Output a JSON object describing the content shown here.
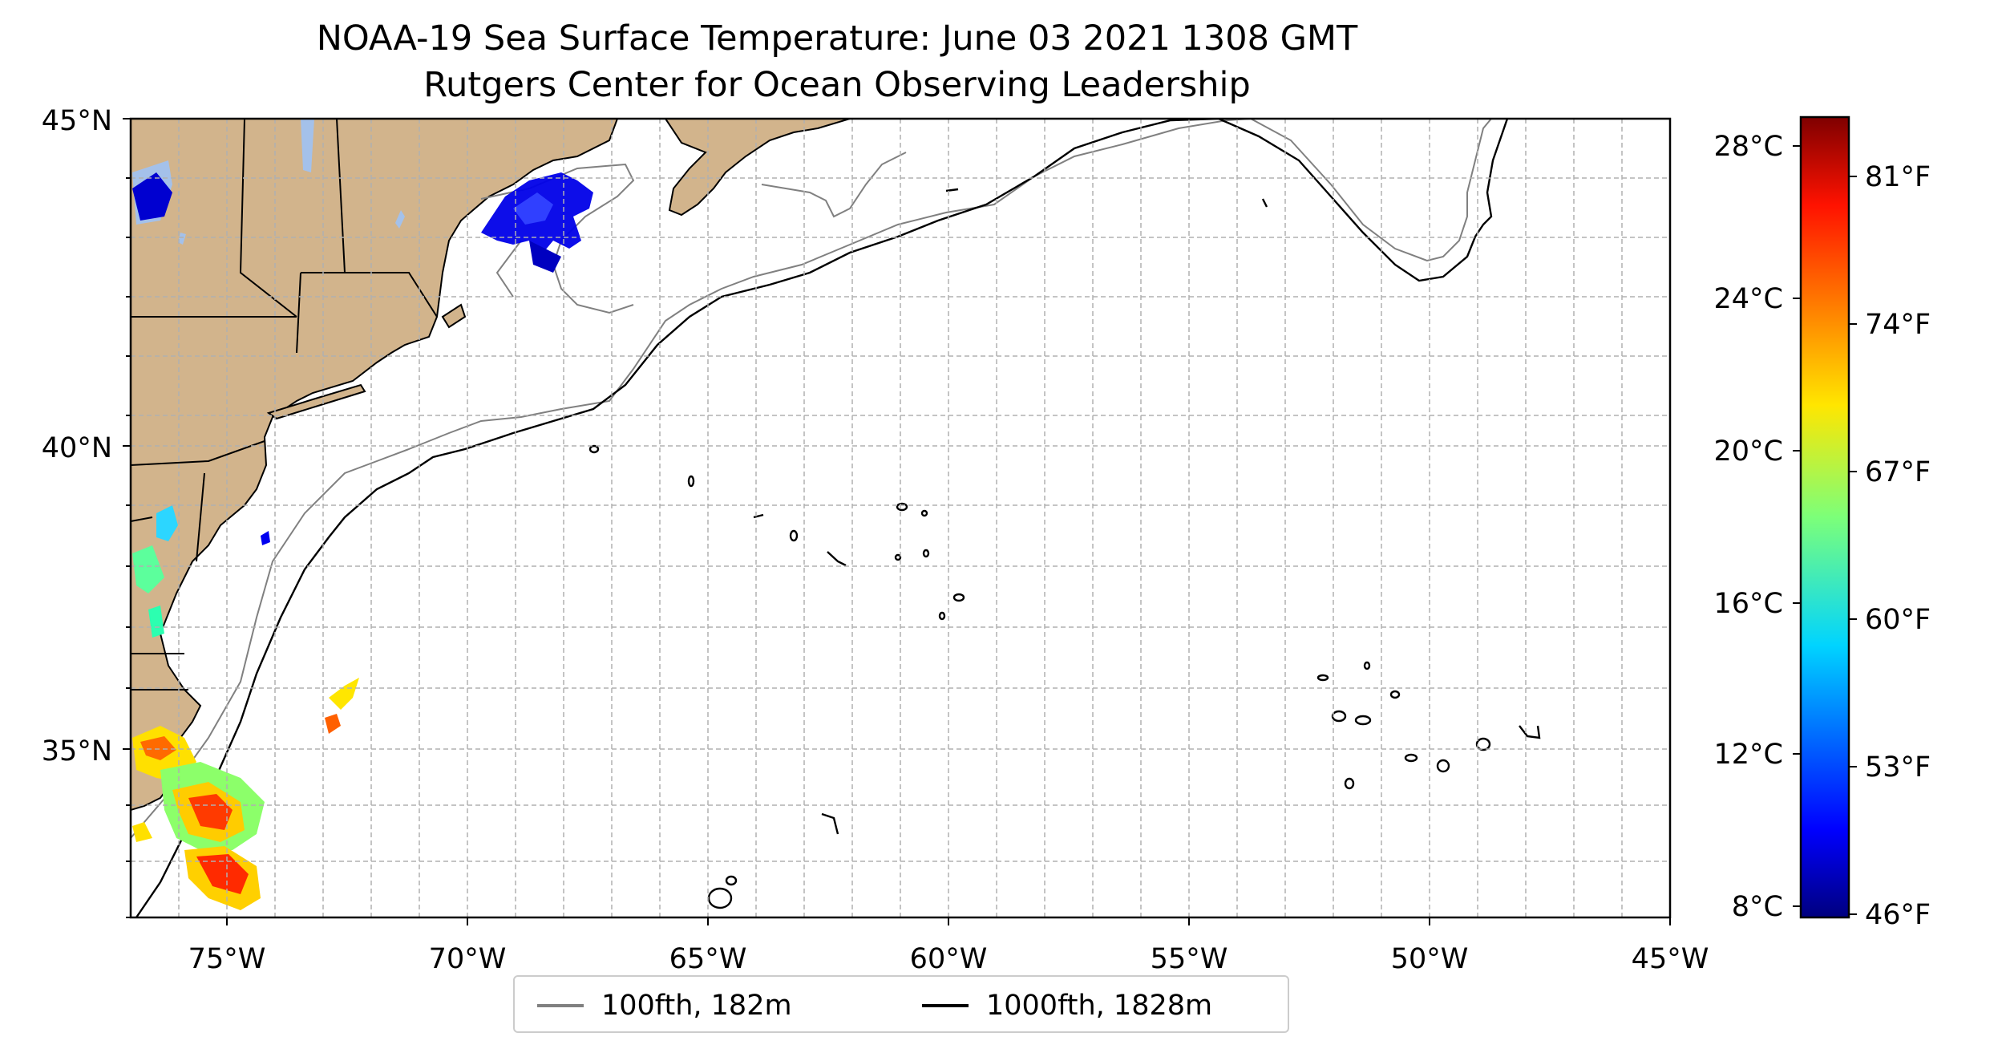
{
  "title": "NOAA-19 Sea Surface Temperature: June 03 2021 1308 GMT",
  "subtitle": "Rutgers Center for Ocean Observing Leadership",
  "map": {
    "lon_range": [
      -77,
      -45
    ],
    "lat_range": [
      31.5,
      45
    ],
    "land_color": "#d2b48c",
    "lake_color": "#a4c1ea",
    "lat_labels": [
      "45°N",
      "40°N",
      "35°N"
    ],
    "lon_labels": [
      "75°W",
      "70°W",
      "65°W",
      "60°W",
      "55°W",
      "50°W",
      "45°W"
    ]
  },
  "colorbar": {
    "colormap": "jet",
    "celsius_labels": [
      "28°C",
      "24°C",
      "20°C",
      "16°C",
      "12°C",
      "8°C"
    ],
    "fahrenheit_labels": [
      "81°F",
      "74°F",
      "67°F",
      "60°F",
      "53°F",
      "46°F"
    ]
  },
  "legend": {
    "items": [
      {
        "label": "100fth, 182m",
        "color": "#808080"
      },
      {
        "label": "1000fth, 1828m",
        "color": "#000000"
      }
    ]
  }
}
